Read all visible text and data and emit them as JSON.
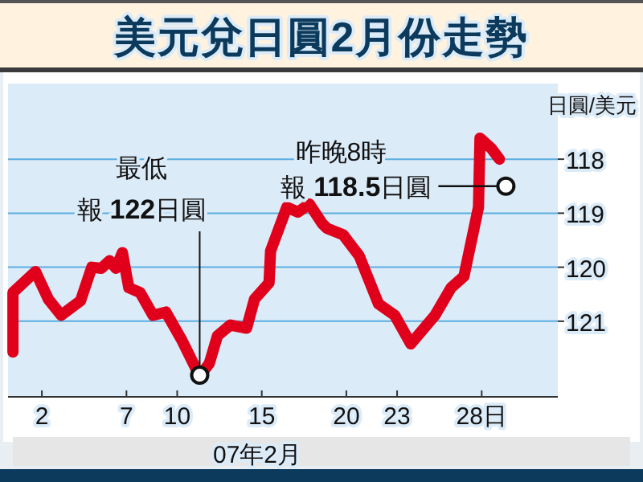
{
  "chart_data": {
    "type": "line",
    "title": "美元兌日圓2月份走勢",
    "xlabel": "07年2月",
    "ylabel": "日圓/美元",
    "series": [
      {
        "color": "#e0001b",
        "x": [
          0.29,
          0.29,
          1.62,
          2.38,
          3.14,
          4.29,
          4.95,
          5.52,
          6.0,
          6.38,
          6.76,
          7.14,
          7.81,
          8.57,
          9.33,
          10.29,
          11.33,
          11.9,
          12.38,
          13.14,
          14.1,
          14.57,
          15.43,
          15.52,
          16.48,
          17.14,
          17.81,
          18.57,
          18.86,
          19.81,
          20.76,
          21.9,
          22.86,
          23.81,
          25.24,
          26.19,
          26.95,
          27.81,
          27.9,
          28.57,
          29.05
        ],
        "values": [
          121.57,
          120.47,
          120.08,
          120.59,
          120.89,
          120.62,
          120.0,
          120.02,
          119.88,
          120.02,
          119.73,
          120.38,
          120.47,
          120.89,
          120.83,
          121.36,
          122.02,
          121.78,
          121.27,
          121.07,
          121.13,
          120.59,
          120.29,
          119.7,
          118.89,
          118.98,
          118.83,
          119.19,
          119.28,
          119.4,
          119.79,
          120.68,
          120.89,
          121.42,
          120.89,
          120.38,
          120.17,
          118.89,
          117.61,
          117.8,
          118.0
        ]
      }
    ],
    "xlim": [
      0,
      32.5
    ],
    "ylim": [
      122.4,
      116.6
    ],
    "xticks": [
      2,
      7,
      10,
      15,
      20,
      23,
      {
        "value": 28,
        "label": "28日"
      }
    ],
    "yticks": [
      118,
      119,
      120,
      121
    ],
    "grid": "y",
    "annotations": [
      "最低",
      {
        "text": "報 **122**日圓",
        "x": 11.33,
        "y": 122
      },
      "昨晚8時",
      {
        "text": "報 **118.5**日圓",
        "x": 29.43,
        "y": 118.5
      }
    ]
  }
}
